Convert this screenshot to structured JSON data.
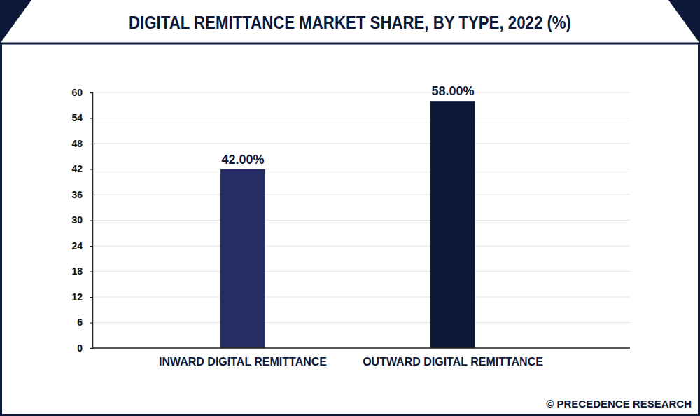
{
  "chart_data": {
    "type": "bar",
    "title": "DIGITAL REMITTANCE MARKET SHARE, BY TYPE, 2022 (%)",
    "categories": [
      "INWARD DIGITAL REMITTANCE",
      "OUTWARD DIGITAL REMITTANCE"
    ],
    "values": [
      42,
      58
    ],
    "value_labels": [
      "42.00%",
      "58.00%"
    ],
    "colors": [
      "#252d63",
      "#0c1838"
    ],
    "ylim": [
      0,
      60
    ],
    "yticks": [
      0,
      6,
      12,
      18,
      24,
      30,
      36,
      42,
      48,
      54,
      60
    ],
    "grid": true,
    "data_labels": true,
    "source": "© PRECEDENCE RESEARCH"
  }
}
